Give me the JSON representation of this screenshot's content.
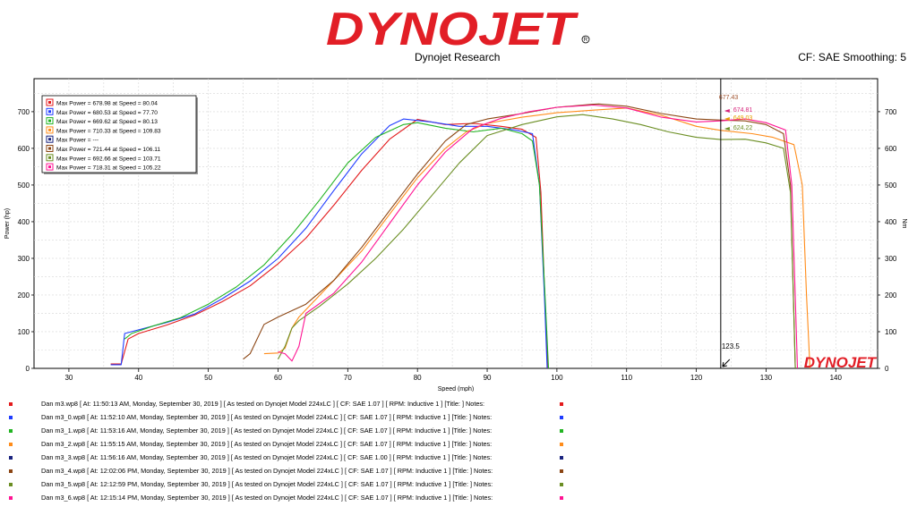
{
  "header": {
    "brand": "DYNOJET",
    "subtitle": "Dynojet Research",
    "cf_info": "CF: SAE Smoothing: 5"
  },
  "colors": {
    "brand_red": "#e21e26",
    "cursor": "#000000"
  },
  "cursor": {
    "speed": 123.5,
    "label": "123.5"
  },
  "cursor_values": [
    "677.43",
    "674.81",
    "649.03",
    "624.22"
  ],
  "watermark": "DYNOJET",
  "runs": [
    {
      "color": "#e31a1c",
      "legend": "Max Power = 678.98 at Speed = 80.04",
      "file": "Dan m3.wp8 [ At: 11:50:13 AM, Monday, September 30, 2019 ] [ As tested on Dynojet Model 224xLC ] [ CF: SAE 1.07 ] [ RPM: Inductive 1 ] [Title: ]   Notes:"
    },
    {
      "color": "#1f3cff",
      "legend": "Max Power = 680.53 at Speed = 77.70",
      "file": "Dan m3_0.wp8 [ At: 11:52:10 AM, Monday, September 30, 2019 ] [ As tested on Dynojet Model 224xLC ] [ CF: SAE 1.07 ] [ RPM: Inductive 1 ] [Title: ]   Notes:"
    },
    {
      "color": "#22b422",
      "legend": "Max Power = 669.62 at Speed = 80.13",
      "file": "Dan m3_1.wp8 [ At: 11:53:16 AM, Monday, September 30, 2019 ] [ As tested on Dynojet Model 224xLC ] [ CF: SAE 1.07 ] [ RPM: Inductive 1 ] [Title: ]   Notes:"
    },
    {
      "color": "#ff8c1a",
      "legend": "Max Power = 710.33 at Speed = 109.83",
      "file": "Dan m3_2.wp8 [ At: 11:55:15 AM, Monday, September 30, 2019 ] [ As tested on Dynojet Model 224xLC ] [ CF: SAE 1.07 ] [ RPM: Inductive 1 ] [Title: ]   Notes:"
    },
    {
      "color": "#1a237e",
      "legend": "Max Power = ---",
      "file": "Dan m3_3.wp8 [ At: 11:56:16 AM, Monday, September 30, 2019 ] [ As tested on Dynojet Model 224xLC ] [ CF: SAE 1.00 ] [ RPM: Inductive 1 ] [Title: ]   Notes:"
    },
    {
      "color": "#8b4513",
      "legend": "Max Power = 721.44 at Speed = 106.11",
      "file": "Dan m3_4.wp8 [ At: 12:02:06 PM, Monday, September 30, 2019 ] [ As tested on Dynojet Model 224xLC ] [ CF: SAE 1.07 ] [ RPM: Inductive 1 ] [Title: ]   Notes:"
    },
    {
      "color": "#6b8e23",
      "legend": "Max Power = 692.66 at Speed = 103.71",
      "file": "Dan m3_5.wp8 [ At: 12:12:59 PM, Monday, September 30, 2019 ] [ As tested on Dynojet Model 224xLC ] [ CF: SAE 1.07 ] [ RPM: Inductive 1 ] [Title: ]   Notes:"
    },
    {
      "color": "#ff1493",
      "legend": "Max Power = 718.31 at Speed = 105.22",
      "file": "Dan m3_6.wp8 [ At: 12:15:14 PM, Monday, September 30, 2019 ] [ As tested on Dynojet Model 224xLC ] [ CF: SAE 1.07 ] [ RPM: Inductive 1 ] [Title: ]   Notes:"
    }
  ],
  "chart_data": {
    "type": "line",
    "xlabel": "Speed (mph)",
    "ylabel": "Power (hp)",
    "y2label": "Nm",
    "xlim": [
      25,
      146
    ],
    "ylim": [
      0,
      790
    ],
    "xticks": [
      30,
      40,
      50,
      60,
      70,
      80,
      90,
      100,
      110,
      120,
      130,
      140
    ],
    "yticks": [
      0,
      100,
      200,
      300,
      400,
      500,
      600,
      700
    ],
    "grid": true,
    "legend": "top-left",
    "series": [
      {
        "name": "Dan m3.wp8",
        "color": "#e31a1c",
        "x": [
          36,
          37.5,
          38.5,
          40,
          44,
          48,
          52,
          56,
          60,
          64,
          68,
          72,
          76,
          80,
          84,
          88,
          92,
          95,
          97,
          97.7,
          98.3,
          98.7
        ],
        "y": [
          12,
          12,
          80,
          95,
          118,
          145,
          182,
          225,
          285,
          355,
          445,
          540,
          625,
          679,
          665,
          668,
          660,
          652,
          630,
          480,
          180,
          0
        ]
      },
      {
        "name": "Dan m3_0.wp8",
        "color": "#1f3cff",
        "x": [
          36,
          37.5,
          38,
          40,
          44,
          48,
          52,
          56,
          60,
          64,
          68,
          72,
          76,
          78,
          82,
          86,
          90,
          94,
          96.5,
          97.5,
          98.2,
          98.6
        ],
        "y": [
          10,
          10,
          95,
          105,
          125,
          148,
          190,
          238,
          300,
          382,
          485,
          585,
          662,
          680,
          672,
          660,
          660,
          650,
          640,
          500,
          200,
          0
        ]
      },
      {
        "name": "Dan m3_1.wp8",
        "color": "#22b422",
        "x": [
          38,
          39,
          42,
          46,
          50,
          54,
          58,
          62,
          66,
          70,
          74,
          78,
          80,
          84,
          88,
          92,
          95,
          96.5,
          97.5,
          98.3,
          98.8
        ],
        "y": [
          80,
          95,
          115,
          138,
          175,
          222,
          282,
          365,
          460,
          560,
          630,
          665,
          670,
          655,
          645,
          655,
          640,
          620,
          500,
          200,
          0
        ]
      },
      {
        "name": "Dan m3_2.wp8",
        "color": "#ff8c1a",
        "x": [
          58,
          60,
          61,
          62,
          63,
          64,
          68,
          72,
          76,
          80,
          84,
          87,
          90,
          95,
          100,
          105,
          110,
          115,
          120,
          123.5,
          128,
          131,
          134,
          135.2,
          135.8,
          136.3
        ],
        "y": [
          40,
          42,
          55,
          110,
          140,
          160,
          240,
          320,
          420,
          520,
          600,
          645,
          668,
          685,
          697,
          704,
          710,
          690,
          660,
          649,
          640,
          630,
          610,
          500,
          200,
          0
        ]
      },
      {
        "name": "Dan m3_4.wp8",
        "color": "#8b4513",
        "x": [
          55,
          56,
          57,
          58,
          60,
          64,
          68,
          72,
          76,
          80,
          84,
          87,
          90,
          95,
          100,
          105,
          106,
          110,
          115,
          120,
          123.5,
          127,
          130,
          132.5,
          133.5,
          134.2
        ],
        "y": [
          25,
          40,
          80,
          120,
          140,
          175,
          240,
          330,
          430,
          530,
          620,
          665,
          680,
          695,
          712,
          720,
          721,
          715,
          695,
          680,
          677,
          675,
          665,
          640,
          500,
          0
        ]
      },
      {
        "name": "Dan m3_5.wp8",
        "color": "#6b8e23",
        "x": [
          60,
          61,
          62,
          63,
          66,
          70,
          74,
          78,
          82,
          86,
          90,
          95,
          100,
          103.7,
          108,
          112,
          116,
          120,
          123.5,
          127,
          130,
          132.5,
          133.5,
          134.2
        ],
        "y": [
          25,
          60,
          110,
          130,
          170,
          230,
          300,
          380,
          470,
          560,
          635,
          665,
          686,
          692,
          680,
          665,
          645,
          630,
          624,
          625,
          615,
          600,
          480,
          0
        ]
      },
      {
        "name": "Dan m3_6.wp8",
        "color": "#ff1493",
        "x": [
          60,
          61,
          62,
          63,
          64,
          68,
          72,
          76,
          80,
          84,
          88,
          92,
          96,
          100,
          105.2,
          110,
          115,
          120,
          123.5,
          127,
          130,
          132.8,
          133.7,
          134.5
        ],
        "y": [
          45,
          40,
          20,
          60,
          150,
          205,
          290,
          395,
          500,
          590,
          655,
          682,
          700,
          712,
          718,
          710,
          685,
          672,
          675,
          680,
          670,
          650,
          500,
          0
        ]
      }
    ]
  }
}
